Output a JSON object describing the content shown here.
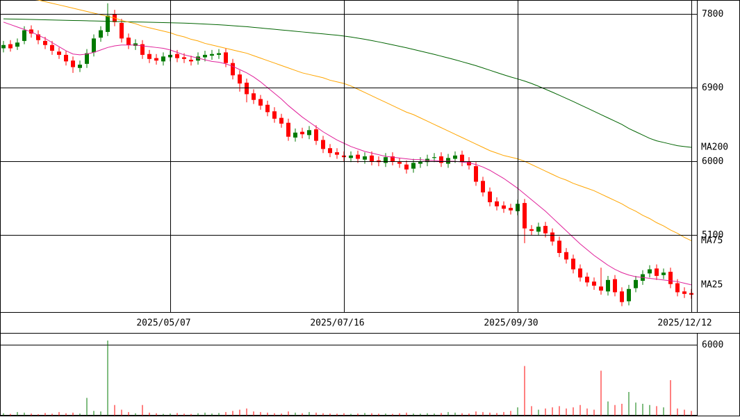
{
  "chart_data": [
    {
      "type": "candlestick",
      "categories": [
        null,
        null,
        null,
        null,
        null,
        null,
        null,
        null,
        null,
        null,
        null,
        null,
        null,
        null,
        null,
        null,
        null,
        null,
        null,
        null,
        null,
        null,
        null,
        null,
        "2025/05/07",
        null,
        null,
        null,
        null,
        null,
        null,
        null,
        null,
        null,
        null,
        null,
        null,
        null,
        null,
        null,
        null,
        null,
        null,
        null,
        null,
        null,
        null,
        null,
        null,
        "2025/07/16",
        null,
        null,
        null,
        null,
        null,
        null,
        null,
        null,
        null,
        null,
        null,
        null,
        null,
        null,
        null,
        null,
        null,
        null,
        null,
        null,
        null,
        null,
        null,
        null,
        "2025/09/30",
        null,
        null,
        null,
        null,
        null,
        null,
        null,
        null,
        null,
        null,
        null,
        null,
        null,
        null,
        null,
        null,
        null,
        null,
        null,
        null,
        null,
        null,
        null,
        null,
        "2025/12/12"
      ],
      "open": [
        7380,
        7430,
        7400,
        7470,
        7610,
        7550,
        7470,
        7420,
        7340,
        7300,
        7230,
        7140,
        7190,
        7330,
        7510,
        7580,
        7800,
        7690,
        7510,
        7410,
        7430,
        7310,
        7260,
        7220,
        7270,
        7310,
        7270,
        7240,
        7230,
        7270,
        7290,
        7300,
        7330,
        7200,
        7060,
        6960,
        6830,
        6760,
        6690,
        6610,
        6530,
        6470,
        6290,
        6360,
        6320,
        6390,
        6260,
        6160,
        6110,
        6070,
        6040,
        6080,
        6020,
        6070,
        6010,
        5980,
        6060,
        5990,
        5960,
        5910,
        5970,
        5990,
        6040,
        6060,
        5970,
        6030,
        6080,
        6000,
        5940,
        5760,
        5630,
        5510,
        5460,
        5430,
        5390,
        5490,
        5170,
        5140,
        5210,
        5130,
        5030,
        4890,
        4810,
        4690,
        4590,
        4530,
        4470,
        4410,
        4560,
        4410,
        4290,
        4450,
        4540,
        4630,
        4690,
        4610,
        4650,
        4510,
        4410,
        4390
      ],
      "high": [
        7470,
        7480,
        7500,
        7650,
        7660,
        7600,
        7520,
        7470,
        7390,
        7350,
        7280,
        7230,
        7370,
        7550,
        7650,
        7930,
        7850,
        7740,
        7560,
        7490,
        7480,
        7360,
        7310,
        7330,
        7350,
        7360,
        7320,
        7290,
        7330,
        7350,
        7360,
        7370,
        7380,
        7250,
        7110,
        7010,
        6880,
        6810,
        6740,
        6660,
        6580,
        6520,
        6400,
        6410,
        6430,
        6440,
        6310,
        6210,
        6160,
        6120,
        6120,
        6130,
        6110,
        6120,
        6060,
        6100,
        6110,
        6040,
        6010,
        6030,
        6050,
        6080,
        6100,
        6110,
        6090,
        6120,
        6130,
        6050,
        5990,
        5810,
        5680,
        5560,
        5510,
        5480,
        5530,
        5540,
        5220,
        5250,
        5260,
        5180,
        5080,
        4940,
        4860,
        4740,
        4640,
        4580,
        4700,
        4600,
        4610,
        4460,
        4490,
        4600,
        4670,
        4730,
        4740,
        4690,
        4700,
        4560,
        4460,
        4440
      ],
      "low": [
        7330,
        7340,
        7360,
        7430,
        7510,
        7430,
        7370,
        7300,
        7250,
        7170,
        7080,
        7090,
        7140,
        7280,
        7460,
        7530,
        7650,
        7450,
        7370,
        7360,
        7250,
        7200,
        7180,
        7170,
        7220,
        7210,
        7200,
        7170,
        7180,
        7220,
        7240,
        7250,
        7150,
        7000,
        6850,
        6720,
        6700,
        6630,
        6550,
        6470,
        6410,
        6250,
        6240,
        6280,
        6270,
        6200,
        6100,
        6050,
        6030,
        6000,
        5990,
        5980,
        5970,
        5950,
        5940,
        5930,
        5950,
        5920,
        5850,
        5860,
        5920,
        5940,
        5990,
        5930,
        5920,
        5980,
        5940,
        5900,
        5700,
        5570,
        5450,
        5400,
        5370,
        5350,
        5340,
        5000,
        5100,
        5090,
        5070,
        4970,
        4830,
        4750,
        4630,
        4530,
        4470,
        4430,
        4370,
        4360,
        4350,
        4230,
        4240,
        4400,
        4490,
        4580,
        4550,
        4560,
        4450,
        4350,
        4330,
        4320
      ],
      "close": [
        7420,
        7380,
        7450,
        7600,
        7560,
        7480,
        7420,
        7350,
        7300,
        7220,
        7150,
        7180,
        7320,
        7500,
        7600,
        7780,
        7700,
        7500,
        7420,
        7440,
        7300,
        7250,
        7230,
        7280,
        7300,
        7260,
        7250,
        7220,
        7280,
        7300,
        7310,
        7320,
        7200,
        7050,
        6950,
        6820,
        6750,
        6680,
        6600,
        6520,
        6460,
        6300,
        6350,
        6330,
        6380,
        6250,
        6150,
        6100,
        6080,
        6050,
        6070,
        6030,
        6060,
        6000,
        5990,
        6050,
        6000,
        5970,
        5900,
        5980,
        6000,
        6030,
        6050,
        5980,
        6040,
        6070,
        5990,
        5950,
        5750,
        5620,
        5500,
        5450,
        5420,
        5400,
        5480,
        5180,
        5150,
        5200,
        5120,
        5020,
        4880,
        4800,
        4680,
        4580,
        4520,
        4480,
        4420,
        4550,
        4400,
        4280,
        4440,
        4550,
        4620,
        4680,
        4600,
        4640,
        4500,
        4400,
        4380,
        4370
      ],
      "up_color": "#007a00",
      "down_color": "#ff0000",
      "series": [
        {
          "name": "MA200",
          "color": "#006400",
          "values": [
            7740,
            7738,
            7736,
            7734,
            7732,
            7730,
            7728,
            7726,
            7724,
            7722,
            7720,
            7718,
            7716,
            7714,
            7712,
            7710,
            7708,
            7706,
            7704,
            7702,
            7700,
            7698,
            7696,
            7694,
            7692,
            7690,
            7688,
            7684,
            7680,
            7676,
            7672,
            7668,
            7662,
            7656,
            7650,
            7644,
            7636,
            7628,
            7620,
            7612,
            7604,
            7596,
            7588,
            7580,
            7572,
            7564,
            7556,
            7548,
            7540,
            7530,
            7518,
            7504,
            7490,
            7474,
            7458,
            7440,
            7422,
            7404,
            7386,
            7366,
            7346,
            7326,
            7306,
            7284,
            7262,
            7240,
            7216,
            7192,
            7168,
            7140,
            7112,
            7084,
            7056,
            7030,
            7006,
            6980,
            6950,
            6916,
            6880,
            6844,
            6806,
            6768,
            6730,
            6690,
            6650,
            6610,
            6570,
            6530,
            6490,
            6450,
            6400,
            6360,
            6320,
            6280,
            6250,
            6230,
            6210,
            6190,
            6180,
            6170
          ]
        },
        {
          "name": "MA75",
          "color": "#ffa500",
          "values": [
            8050,
            8030,
            8010,
            7990,
            7980,
            7970,
            7950,
            7930,
            7910,
            7890,
            7870,
            7850,
            7830,
            7810,
            7790,
            7770,
            7750,
            7720,
            7700,
            7680,
            7650,
            7630,
            7610,
            7590,
            7570,
            7540,
            7520,
            7490,
            7470,
            7440,
            7420,
            7400,
            7380,
            7360,
            7340,
            7320,
            7290,
            7260,
            7230,
            7200,
            7170,
            7140,
            7110,
            7080,
            7060,
            7040,
            7020,
            6990,
            6970,
            6950,
            6920,
            6880,
            6840,
            6800,
            6760,
            6720,
            6680,
            6640,
            6600,
            6570,
            6530,
            6490,
            6450,
            6410,
            6370,
            6330,
            6290,
            6250,
            6210,
            6170,
            6130,
            6100,
            6070,
            6050,
            6030,
            6000,
            5960,
            5920,
            5880,
            5840,
            5800,
            5770,
            5730,
            5700,
            5670,
            5640,
            5600,
            5560,
            5520,
            5480,
            5430,
            5390,
            5340,
            5300,
            5250,
            5210,
            5160,
            5120,
            5070,
            5030
          ]
        },
        {
          "name": "MA25",
          "color": "#e0209a",
          "values": [
            7700,
            7670,
            7640,
            7610,
            7580,
            7540,
            7500,
            7450,
            7400,
            7350,
            7310,
            7300,
            7310,
            7330,
            7360,
            7390,
            7410,
            7420,
            7420,
            7420,
            7410,
            7400,
            7390,
            7380,
            7360,
            7330,
            7300,
            7280,
            7260,
            7240,
            7220,
            7210,
            7190,
            7160,
            7120,
            7080,
            7030,
            6970,
            6900,
            6830,
            6760,
            6680,
            6610,
            6540,
            6480,
            6420,
            6360,
            6310,
            6260,
            6220,
            6180,
            6150,
            6120,
            6100,
            6080,
            6060,
            6050,
            6040,
            6030,
            6020,
            6020,
            6010,
            6010,
            6000,
            6000,
            6000,
            5990,
            5980,
            5960,
            5930,
            5890,
            5840,
            5790,
            5730,
            5670,
            5600,
            5530,
            5460,
            5390,
            5310,
            5230,
            5150,
            5070,
            4990,
            4920,
            4850,
            4790,
            4730,
            4680,
            4640,
            4610,
            4590,
            4580,
            4570,
            4560,
            4550,
            4540,
            4530,
            4510,
            4490
          ]
        }
      ],
      "ylim": [
        4158,
        7970
      ],
      "yticks": [
        5100,
        6000,
        6900,
        7800
      ],
      "grid": true
    },
    {
      "type": "bar",
      "values": [
        200,
        150,
        300,
        250,
        180,
        120,
        220,
        160,
        300,
        200,
        250,
        180,
        1500,
        400,
        350,
        6350,
        900,
        500,
        300,
        200,
        900,
        250,
        200,
        150,
        180,
        220,
        160,
        140,
        200,
        250,
        180,
        220,
        300,
        400,
        500,
        600,
        350,
        300,
        250,
        200,
        180,
        350,
        250,
        200,
        300,
        250,
        200,
        180,
        160,
        200,
        150,
        180,
        220,
        200,
        160,
        180,
        150,
        200,
        250,
        180,
        160,
        200,
        180,
        220,
        300,
        250,
        200,
        180,
        350,
        300,
        250,
        220,
        300,
        400,
        700,
        4200,
        800,
        500,
        600,
        700,
        800,
        600,
        700,
        900,
        600,
        500,
        3800,
        1200,
        900,
        1000,
        2000,
        1100,
        1000,
        900,
        800,
        700,
        3000,
        600,
        500,
        400
      ],
      "ylim": [
        0,
        6941
      ],
      "yticks": [
        6000
      ],
      "grid": true
    }
  ]
}
